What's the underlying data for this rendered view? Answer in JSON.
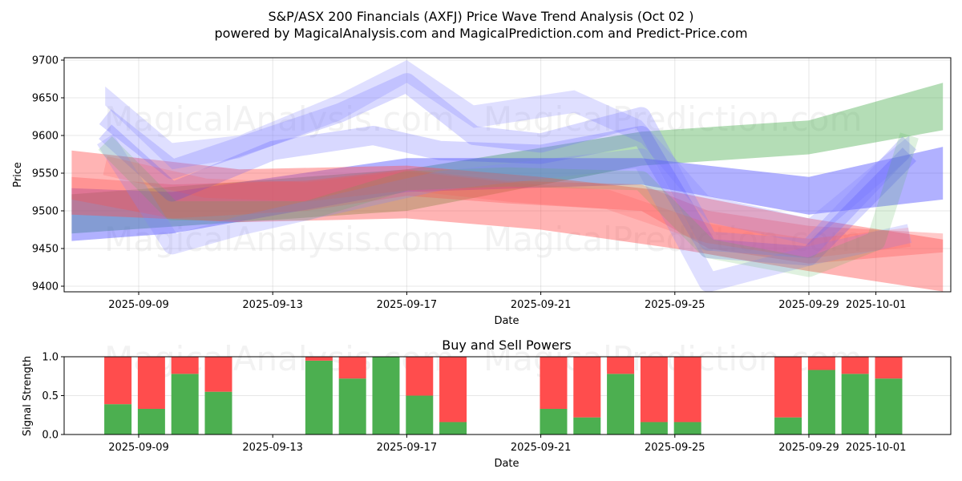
{
  "header": {
    "title": "S&P/ASX 200 Financials (AXFJ) Price Wave Trend Analysis (Oct 02 )",
    "subtitle": "powered by MagicalAnalysis.com and MagicalPrediction.com and Predict-Price.com"
  },
  "watermarks": [
    "MagicalAnalysis.com",
    "MagicalPrediction.com"
  ],
  "chart_data": [
    {
      "type": "area",
      "title": "",
      "xlabel": "Date",
      "ylabel": "Price",
      "xlim": [
        "2025-09-06",
        "2025-10-03"
      ],
      "ylim": [
        9395,
        9705
      ],
      "x_ticks": [
        "2025-09-09",
        "2025-09-13",
        "2025-09-17",
        "2025-09-21",
        "2025-09-25",
        "2025-09-29",
        "2025-10-01"
      ],
      "y_ticks": [
        9400,
        9450,
        9500,
        9550,
        9600,
        9650,
        9700
      ],
      "grid": true,
      "legend": "none",
      "colors": {
        "green": "#4caf50",
        "blue": "#3b3bff",
        "red": "#ff4d4d",
        "lightblue": "#8080ff"
      },
      "series": [
        {
          "name": "green-band-long",
          "color": "green",
          "opacity": 0.42,
          "x": [
            "2025-09-07",
            "2025-09-17",
            "2025-09-24",
            "2025-09-29",
            "2025-10-03"
          ],
          "upper": [
            9522,
            9555,
            9605,
            9620,
            9670
          ],
          "lower": [
            9470,
            9500,
            9560,
            9575,
            9607
          ]
        },
        {
          "name": "blue-band-long",
          "color": "blue",
          "opacity": 0.4,
          "x": [
            "2025-09-07",
            "2025-09-10",
            "2025-09-17",
            "2025-09-24",
            "2025-09-29",
            "2025-10-03"
          ],
          "upper": [
            9530,
            9525,
            9570,
            9570,
            9545,
            9585
          ],
          "lower": [
            9460,
            9470,
            9525,
            9535,
            9495,
            9515
          ]
        },
        {
          "name": "red-band-long",
          "color": "red",
          "opacity": 0.42,
          "x": [
            "2025-09-07",
            "2025-09-12",
            "2025-09-17",
            "2025-09-21",
            "2025-09-25",
            "2025-09-29",
            "2025-10-03"
          ],
          "upper": [
            9580,
            9555,
            9560,
            9545,
            9525,
            9490,
            9462
          ],
          "lower": [
            9495,
            9485,
            9490,
            9475,
            9450,
            9420,
            9393
          ]
        },
        {
          "name": "purple-band-mid",
          "color": "red",
          "opacity": 0.3,
          "x": [
            "2025-09-07",
            "2025-09-10",
            "2025-09-14",
            "2025-09-17",
            "2025-09-20",
            "2025-09-24",
            "2025-09-26",
            "2025-09-29",
            "2025-10-03"
          ],
          "upper": [
            9545,
            9535,
            9540,
            9555,
            9540,
            9535,
            9500,
            9480,
            9470
          ],
          "lower": [
            9515,
            9490,
            9500,
            9520,
            9510,
            9500,
            9450,
            9430,
            9445
          ]
        },
        {
          "name": "wave-1",
          "color": "lightblue",
          "opacity": 0.25,
          "x": [
            "2025-09-08",
            "2025-09-10",
            "2025-09-12",
            "2025-09-15",
            "2025-09-17",
            "2025-09-19",
            "2025-09-22",
            "2025-09-24",
            "2025-09-26",
            "2025-09-29",
            "2025-10-02"
          ],
          "upper": [
            9665,
            9590,
            9600,
            9655,
            9700,
            9640,
            9660,
            9620,
            9520,
            9490,
            9600
          ],
          "lower": [
            9640,
            9555,
            9570,
            9620,
            9670,
            9610,
            9630,
            9590,
            9485,
            9455,
            9570
          ]
        },
        {
          "name": "wave-2",
          "color": "lightblue",
          "opacity": 0.3,
          "x": [
            "2025-09-08",
            "2025-09-10",
            "2025-09-13",
            "2025-09-15",
            "2025-09-17",
            "2025-09-19",
            "2025-09-21",
            "2025-09-24",
            "2025-09-26",
            "2025-09-29",
            "2025-10-02"
          ],
          "upper": [
            9625,
            9555,
            9600,
            9630,
            9670,
            9600,
            9590,
            9625,
            9460,
            9450,
            9590
          ]
        },
        {
          "name": "wave-3",
          "color": "blue",
          "opacity": 0.2,
          "x": [
            "2025-09-08",
            "2025-09-10",
            "2025-09-13",
            "2025-09-16",
            "2025-09-18",
            "2025-09-21",
            "2025-09-24",
            "2025-09-26",
            "2025-09-29",
            "2025-10-02"
          ],
          "upper": [
            9605,
            9525,
            9580,
            9600,
            9580,
            9575,
            9600,
            9450,
            9440,
            9575
          ]
        },
        {
          "name": "wave-4",
          "color": "lightblue",
          "opacity": 0.25,
          "x": [
            "2025-09-08",
            "2025-09-10",
            "2025-09-12",
            "2025-09-15",
            "2025-09-18",
            "2025-09-21",
            "2025-09-24",
            "2025-09-26",
            "2025-09-29",
            "2025-10-02"
          ],
          "upper": [
            9595,
            9455,
            9480,
            9510,
            9540,
            9555,
            9570,
            9405,
            9440,
            9470
          ]
        },
        {
          "name": "wave-5",
          "color": "red",
          "opacity": 0.18,
          "x": [
            "2025-09-08",
            "2025-09-11",
            "2025-09-14",
            "2025-09-17",
            "2025-09-20",
            "2025-09-23",
            "2025-09-26",
            "2025-09-29",
            "2025-10-02"
          ],
          "upper": [
            9560,
            9530,
            9525,
            9540,
            9525,
            9515,
            9470,
            9450,
            9465
          ]
        },
        {
          "name": "wave-6",
          "color": "green",
          "opacity": 0.18,
          "x": [
            "2025-09-08",
            "2025-09-10",
            "2025-09-14",
            "2025-09-17",
            "2025-09-20",
            "2025-09-24",
            "2025-09-26",
            "2025-09-29",
            "2025-10-01",
            "2025-10-02"
          ],
          "upper": [
            9590,
            9500,
            9500,
            9540,
            9545,
            9540,
            9450,
            9425,
            9460,
            9600
          ]
        }
      ]
    },
    {
      "type": "bar",
      "title": "Buy and Sell Powers",
      "xlabel": "Date",
      "ylabel": "Signal Strength",
      "ylim": [
        0,
        1.0
      ],
      "y_ticks": [
        "0.0",
        "0.5",
        "1.0"
      ],
      "x_ticks": [
        "2025-09-09",
        "2025-09-13",
        "2025-09-17",
        "2025-09-21",
        "2025-09-25",
        "2025-09-29",
        "2025-10-01"
      ],
      "grid": true,
      "legend": "none",
      "colors": {
        "buy": "#4caf50",
        "sell": "#ff4d4d"
      },
      "categories": [
        "2025-09-08",
        "2025-09-09",
        "2025-09-10",
        "2025-09-11",
        "2025-09-14",
        "2025-09-15",
        "2025-09-16",
        "2025-09-17",
        "2025-09-18",
        "2025-09-21",
        "2025-09-22",
        "2025-09-23",
        "2025-09-24",
        "2025-09-25",
        "2025-09-28",
        "2025-09-29",
        "2025-09-30",
        "2025-10-01"
      ],
      "series": [
        {
          "name": "Buy",
          "values": [
            0.39,
            0.33,
            0.78,
            0.55,
            0.95,
            0.72,
            1.0,
            0.5,
            0.16,
            0.33,
            0.22,
            0.78,
            0.16,
            0.16,
            0.22,
            0.83,
            0.78,
            0.72
          ]
        },
        {
          "name": "Sell",
          "values": [
            0.61,
            0.67,
            0.22,
            0.45,
            0.05,
            0.28,
            0.0,
            0.5,
            0.84,
            0.67,
            0.78,
            0.22,
            0.84,
            0.84,
            0.78,
            0.17,
            0.22,
            0.28
          ]
        }
      ]
    }
  ]
}
